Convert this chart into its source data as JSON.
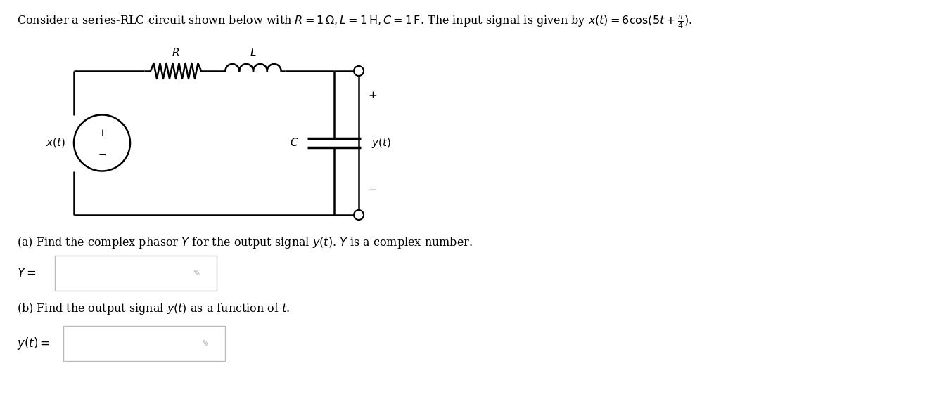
{
  "background_color": "#ffffff",
  "title_text": "Consider a series-RLC circuit shown below with $R = 1\\,\\Omega, L = 1\\,\\mathrm{H}, C = 1\\,\\mathrm{F}$. The input signal is given by $x(t) = 6\\cos(5t + \\frac{\\pi}{4})$.",
  "part_a_text": "(a) Find the complex phasor $Y$ for the output signal $y(t)$. $Y$ is a complex number.",
  "part_b_text": "(b) Find the output signal $y(t)$ as a function of $t$.",
  "Y_label": "$Y = $",
  "yt_label": "$y(t) = $",
  "source_label": "$x(t)$",
  "R_label": "$R$",
  "L_label": "$L$",
  "C_label": "$C$",
  "yt_node_label": "$y(t)$"
}
